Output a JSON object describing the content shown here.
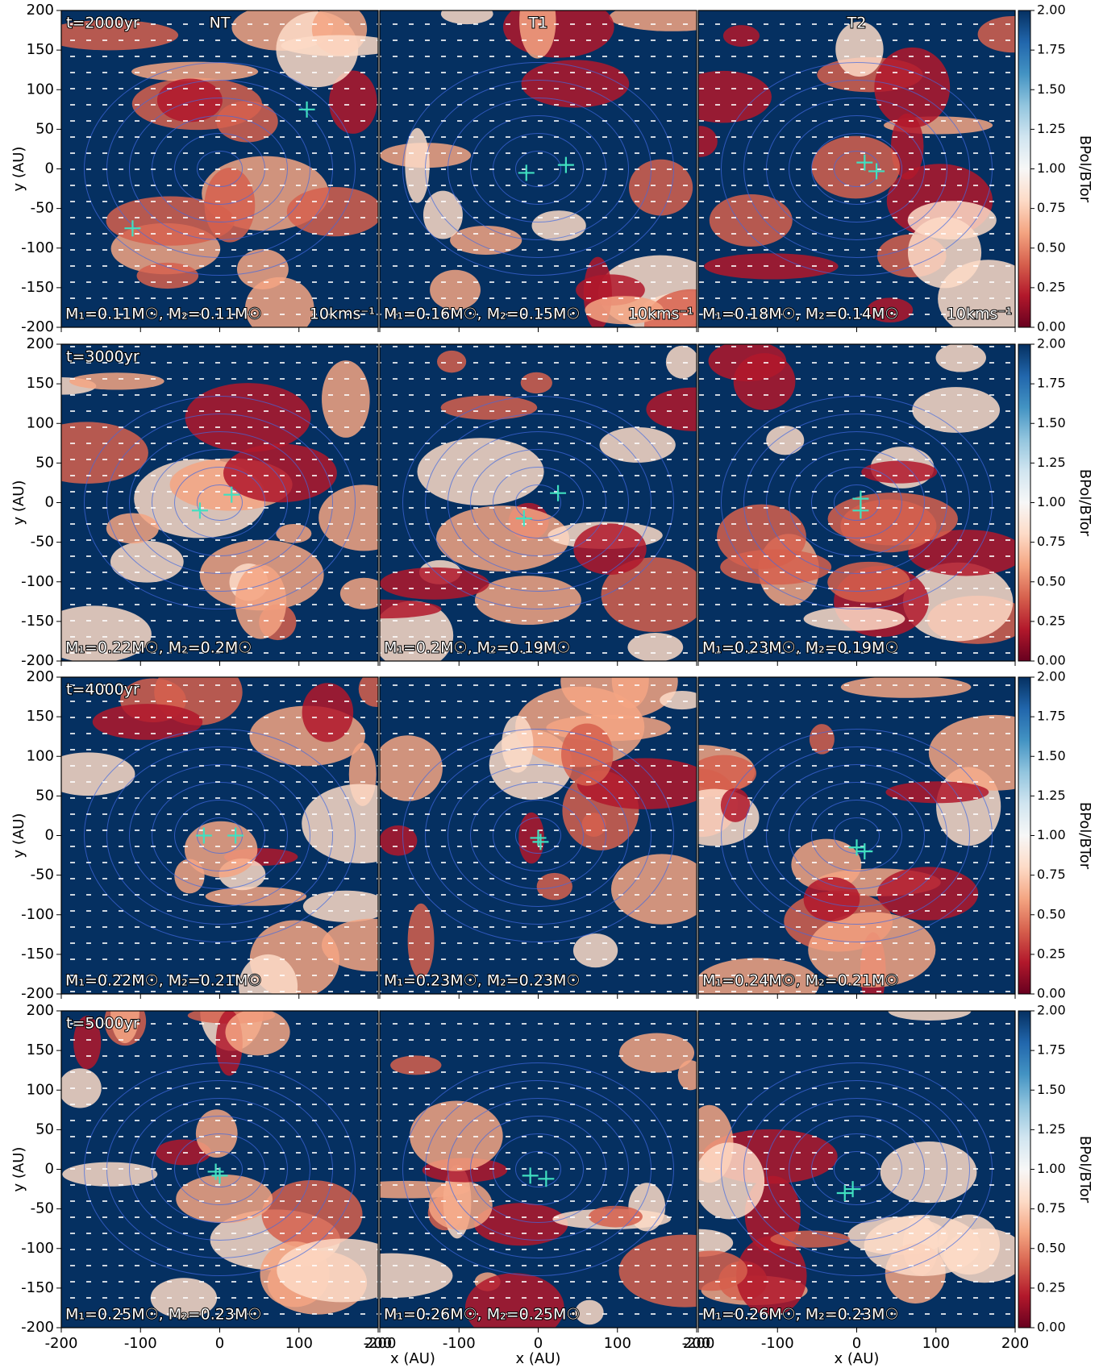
{
  "chart_data": {
    "type": "heatmap",
    "xlabel": "x (AU)",
    "ylabel": "y (AU)",
    "xlim": [
      -200,
      200
    ],
    "ylim": [
      -200,
      200
    ],
    "xticks": [
      -200,
      -100,
      0,
      100,
      200
    ],
    "yticks": [
      -200,
      -150,
      -100,
      -50,
      0,
      50,
      100,
      150,
      200
    ],
    "columns": [
      "NT",
      "T1",
      "T2"
    ],
    "vector_label": "10kms⁻¹",
    "colorbar": {
      "label": "BPol/BTor",
      "lim": [
        0,
        2
      ],
      "ticks": [
        {
          "value": 0,
          "label": "0.00"
        },
        {
          "value": 0.25,
          "label": "0.25"
        },
        {
          "value": 0.5,
          "label": "0.50"
        },
        {
          "value": 0.75,
          "label": "0.75"
        },
        {
          "value": 1,
          "label": "1.00"
        },
        {
          "value": 1.25,
          "label": "1.25"
        },
        {
          "value": 1.5,
          "label": "1.50"
        },
        {
          "value": 1.75,
          "label": "1.75"
        },
        {
          "value": 2,
          "label": "2.00"
        }
      ],
      "colors": [
        "#67001f",
        "#b2182b",
        "#d6604d",
        "#f4a582",
        "#fddbc7",
        "#f7f7f7",
        "#d1e5f0",
        "#92c5de",
        "#4393c3",
        "#2166ac",
        "#053061"
      ]
    },
    "sink_color": "#40e0c0",
    "rows": [
      {
        "time": "t=2000yr",
        "panels": [
          {
            "mass_label": "M₁=0.11M☉, M₂=0.11M☉",
            "sinks": {
              "x": [
                -110,
                110
              ],
              "y": [
                -75,
                75
              ]
            }
          },
          {
            "mass_label": "M₁=0.16M☉, M₂=0.15M☉",
            "sinks": {
              "x": [
                -15,
                35
              ],
              "y": [
                -5,
                5
              ]
            }
          },
          {
            "mass_label": "M₁=0.18M☉, M₂=0.14M☉",
            "sinks": {
              "x": [
                10,
                25
              ],
              "y": [
                8,
                -3
              ]
            }
          }
        ]
      },
      {
        "time": "t=3000yr",
        "panels": [
          {
            "mass_label": "M₁=0.22M☉, M₂=0.2M☉",
            "sinks": {
              "x": [
                -25,
                15
              ],
              "y": [
                -10,
                10
              ]
            }
          },
          {
            "mass_label": "M₁=0.2M☉, M₂=0.19M☉",
            "sinks": {
              "x": [
                -18,
                25
              ],
              "y": [
                -20,
                12
              ]
            }
          },
          {
            "mass_label": "M₁=0.23M☉, M₂=0.19M☉",
            "sinks": {
              "x": [
                5,
                5
              ],
              "y": [
                5,
                -10
              ]
            }
          }
        ]
      },
      {
        "time": "t=4000yr",
        "panels": [
          {
            "mass_label": "M₁=0.22M☉, M₂=0.21M☉",
            "sinks": {
              "x": [
                -20,
                20
              ],
              "y": [
                0,
                0
              ]
            }
          },
          {
            "mass_label": "M₁=0.23M☉, M₂=0.23M☉",
            "sinks": {
              "x": [
                0,
                3
              ],
              "y": [
                -3,
                -8
              ]
            }
          },
          {
            "mass_label": "M₁=0.24M☉, M₂=0.21M☉",
            "sinks": {
              "x": [
                0,
                10
              ],
              "y": [
                -15,
                -20
              ]
            }
          }
        ]
      },
      {
        "time": "t=5000yr",
        "panels": [
          {
            "mass_label": "M₁=0.25M☉, M₂=0.23M☉",
            "sinks": {
              "x": [
                -5,
                0
              ],
              "y": [
                -3,
                -8
              ]
            }
          },
          {
            "mass_label": "M₁=0.26M☉, M₂=0.25M☉",
            "sinks": {
              "x": [
                -10,
                10
              ],
              "y": [
                -8,
                -12
              ]
            }
          },
          {
            "mass_label": "M₁=0.26M☉, M₂=0.23M☉",
            "sinks": {
              "x": [
                -15,
                -5
              ],
              "y": [
                -30,
                -25
              ]
            }
          }
        ]
      }
    ]
  }
}
